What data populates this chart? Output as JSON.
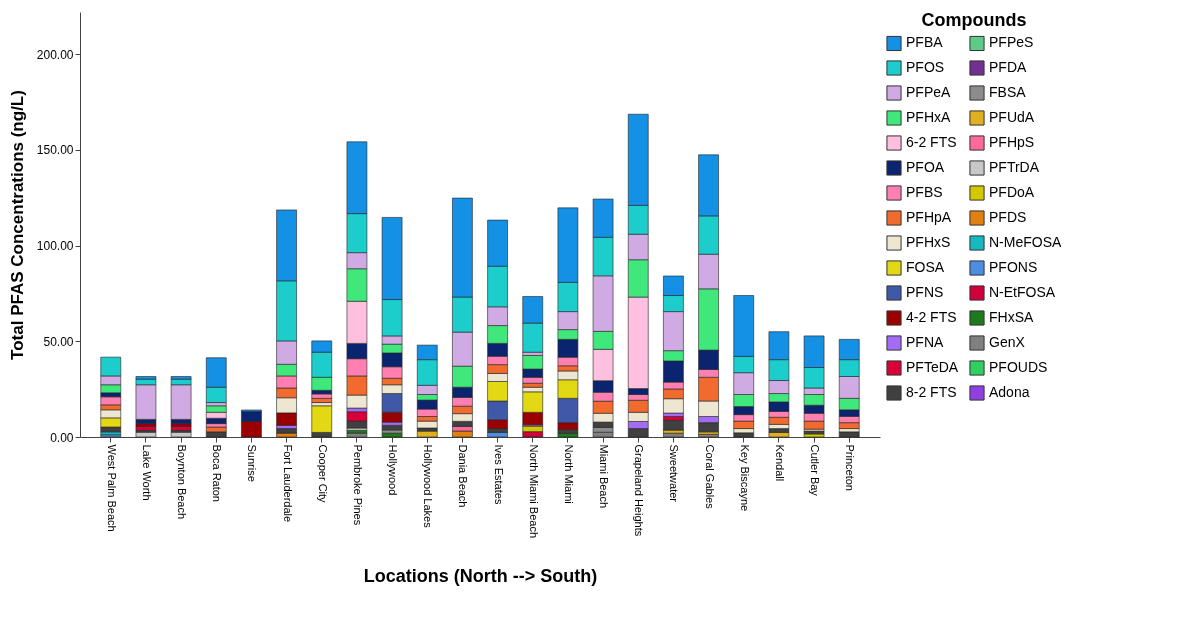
{
  "chart_data": {
    "type": "bar",
    "stacked": true,
    "xlabel": "Locations (North --> South)",
    "ylabel": "Total PFAS Concentrations (ng/L)",
    "legend_title": "Compounds",
    "legend": "right",
    "grid": false,
    "categories": [
      "West Palm Beach",
      "Lake Worth",
      "Boynton Beach",
      "Boca Raton",
      "Sunrise",
      "Fort Lauderdale",
      "Cooper City",
      "Pembroke Pines",
      "Hollywood",
      "Hollywood Lakes",
      "Dania Beach",
      "Ives Estates",
      "North Miami Beach",
      "North Miami",
      "Miami Beach",
      "Grapeland Heights",
      "Sweetwater",
      "Coral Gables",
      "Key Biscayne",
      "Kendall",
      "Cutler Bay",
      "Princeton"
    ],
    "ylim": [
      0,
      222
    ],
    "yticks": [
      {
        "value": 0,
        "label": "0.00"
      },
      {
        "value": 50,
        "label": "50.00"
      },
      {
        "value": 100,
        "label": "100.00"
      },
      {
        "value": 150,
        "label": "150.00"
      },
      {
        "value": 200,
        "label": "200.00"
      }
    ],
    "series": [
      {
        "name": "Adona",
        "color": "#9040e0",
        "values": [
          null,
          null,
          null,
          null,
          null,
          null,
          null,
          null,
          null,
          null,
          null,
          null,
          null,
          null,
          null,
          null,
          null,
          null,
          null,
          null,
          null,
          null
        ]
      },
      {
        "name": "PFOUDS",
        "color": "#30d060",
        "values": [
          null,
          null,
          null,
          null,
          null,
          null,
          null,
          null,
          null,
          null,
          null,
          null,
          null,
          null,
          null,
          null,
          null,
          null,
          null,
          null,
          null,
          null
        ]
      },
      {
        "name": "GenX",
        "color": "#808080",
        "values": [
          null,
          null,
          null,
          null,
          null,
          null,
          null,
          2.0,
          null,
          null,
          null,
          null,
          null,
          null,
          2.5,
          null,
          2.0,
          1.4,
          null,
          null,
          null,
          null
        ]
      },
      {
        "name": "FHxSA",
        "color": "#1d7a1d",
        "values": [
          null,
          null,
          null,
          null,
          null,
          null,
          null,
          1.5,
          2.0,
          null,
          null,
          null,
          null,
          1.9,
          null,
          null,
          null,
          null,
          null,
          null,
          null,
          null
        ]
      },
      {
        "name": "N-EtFOSA",
        "color": "#d0003a",
        "values": [
          null,
          null,
          null,
          null,
          null,
          null,
          null,
          null,
          null,
          null,
          null,
          null,
          2.8,
          null,
          null,
          null,
          null,
          null,
          null,
          null,
          null,
          null
        ]
      },
      {
        "name": "PFONS",
        "color": "#4c8ee0",
        "values": [
          1.2,
          null,
          null,
          null,
          null,
          null,
          null,
          null,
          null,
          null,
          null,
          2.4,
          null,
          null,
          null,
          null,
          null,
          null,
          null,
          null,
          null,
          null
        ]
      },
      {
        "name": "N-MeFOSA",
        "color": "#18b8c0",
        "values": [
          1.5,
          null,
          null,
          null,
          null,
          null,
          null,
          null,
          null,
          null,
          null,
          null,
          null,
          null,
          null,
          null,
          null,
          null,
          null,
          null,
          null,
          null
        ]
      },
      {
        "name": "PFDS",
        "color": "#e08010",
        "values": [
          null,
          null,
          null,
          null,
          null,
          2.0,
          null,
          null,
          null,
          null,
          3.1,
          null,
          null,
          null,
          null,
          null,
          null,
          null,
          null,
          null,
          null,
          null
        ]
      },
      {
        "name": "PFDoA",
        "color": "#d4c800",
        "values": [
          null,
          null,
          null,
          null,
          null,
          null,
          null,
          null,
          null,
          null,
          null,
          null,
          2.9,
          null,
          null,
          null,
          null,
          null,
          null,
          null,
          1.6,
          null
        ]
      },
      {
        "name": "PFTrDA",
        "color": "#c8c8c8",
        "values": [
          null,
          2.5,
          2.5,
          null,
          null,
          null,
          null,
          1.2,
          null,
          null,
          null,
          null,
          null,
          null,
          null,
          null,
          null,
          null,
          null,
          null,
          null,
          null
        ]
      },
      {
        "name": "PFHpS",
        "color": "#ff6a9e",
        "values": [
          null,
          null,
          null,
          null,
          null,
          null,
          null,
          null,
          null,
          null,
          2.4,
          null,
          null,
          null,
          null,
          null,
          null,
          null,
          null,
          null,
          null,
          null
        ]
      },
      {
        "name": "PFUdA",
        "color": "#e0b020",
        "values": [
          null,
          null,
          null,
          null,
          null,
          null,
          null,
          null,
          null,
          3.1,
          null,
          null,
          null,
          null,
          null,
          null,
          1.6,
          1.3,
          null,
          2.4,
          null,
          null
        ]
      },
      {
        "name": "FBSA",
        "color": "#8c8c8c",
        "values": [
          null,
          null,
          null,
          null,
          null,
          null,
          null,
          null,
          1.7,
          null,
          null,
          null,
          null,
          null,
          2.5,
          null,
          null,
          null,
          null,
          null,
          null,
          null
        ]
      },
      {
        "name": "PFDA",
        "color": "#733090",
        "values": [
          null,
          null,
          null,
          null,
          null,
          null,
          null,
          null,
          null,
          null,
          null,
          null,
          null,
          null,
          null,
          null,
          null,
          null,
          null,
          null,
          null,
          null
        ]
      },
      {
        "name": "PFPeS",
        "color": "#5ccb8a",
        "values": [
          null,
          null,
          null,
          null,
          null,
          null,
          null,
          null,
          null,
          null,
          null,
          null,
          null,
          null,
          null,
          null,
          null,
          null,
          null,
          null,
          null,
          null
        ]
      },
      {
        "name": "8-2 FTS",
        "color": "#404040",
        "values": [
          2.5,
          1.0,
          1.0,
          2.7,
          null,
          2.4,
          2.4,
          3.6,
          2.4,
          1.6,
          2.7,
          2.0,
          null,
          2.0,
          2.8,
          4.4,
          5.1,
          4.8,
          2.2,
          2.0,
          1.5,
          2.7
        ]
      },
      {
        "name": "PFTeDA",
        "color": "#d9003a",
        "values": [
          null,
          2.0,
          2.0,
          null,
          null,
          null,
          null,
          4.9,
          null,
          null,
          null,
          null,
          null,
          null,
          null,
          null,
          2.0,
          null,
          null,
          null,
          null,
          null
        ]
      },
      {
        "name": "PFNA",
        "color": "#a46cf5",
        "values": [
          null,
          null,
          null,
          null,
          null,
          1.7,
          null,
          1.9,
          1.7,
          null,
          null,
          null,
          0.7,
          null,
          null,
          3.7,
          1.8,
          3.2,
          null,
          null,
          null,
          null
        ]
      },
      {
        "name": "4-2 FTS",
        "color": "#9b0000",
        "values": [
          null,
          1.5,
          1.5,
          null,
          8.1,
          6.5,
          null,
          null,
          5.1,
          null,
          null,
          4.6,
          6.5,
          3.6,
          null,
          null,
          null,
          null,
          null,
          null,
          null,
          null
        ]
      },
      {
        "name": "PFNS",
        "color": "#3f59a8",
        "values": [
          null,
          null,
          null,
          null,
          null,
          null,
          null,
          null,
          9.8,
          null,
          null,
          9.8,
          null,
          12.7,
          null,
          null,
          null,
          null,
          null,
          null,
          null,
          null
        ]
      },
      {
        "name": "FOSA",
        "color": "#e3d814",
        "values": [
          4.8,
          null,
          null,
          null,
          null,
          null,
          13.9,
          null,
          null,
          null,
          null,
          10.2,
          10.7,
          9.7,
          null,
          null,
          null,
          null,
          null,
          null,
          null,
          null
        ]
      },
      {
        "name": "PFHxS",
        "color": "#ede6d0",
        "values": [
          4.2,
          null,
          null,
          null,
          null,
          7.9,
          1.7,
          6.8,
          4.6,
          3.6,
          4.0,
          4.2,
          2.4,
          4.6,
          4.6,
          4.8,
          7.5,
          8.1,
          2.2,
          2.2,
          1.0,
          1.7
        ]
      },
      {
        "name": "PFHpA",
        "color": "#f26b2e",
        "values": [
          2.6,
          null,
          null,
          2.5,
          null,
          5.1,
          2.2,
          10.0,
          3.4,
          2.4,
          3.9,
          4.6,
          2.1,
          2.7,
          6.3,
          6.3,
          5.1,
          12.4,
          3.9,
          3.7,
          4.2,
          3.1
        ]
      },
      {
        "name": "PFBS",
        "color": "#ff80b0",
        "values": [
          4.2,
          null,
          null,
          1.8,
          null,
          6.3,
          2.3,
          9.0,
          6.0,
          3.9,
          4.6,
          4.4,
          3.1,
          4.5,
          4.7,
          3.0,
          3.6,
          4.1,
          3.4,
          3.1,
          4.1,
          3.3
        ]
      },
      {
        "name": "PFOA",
        "color": "#0b2470",
        "values": [
          2.1,
          2.2,
          2.2,
          2.8,
          5.2,
          null,
          1.9,
          8.0,
          7.2,
          4.7,
          5.3,
          6.7,
          4.3,
          9.3,
          6.0,
          3.1,
          11.0,
          10.1,
          4.2,
          4.9,
          4.2,
          3.4
        ]
      },
      {
        "name": "6-2 FTS",
        "color": "#ffc0e0",
        "values": [
          null,
          null,
          null,
          3.1,
          null,
          null,
          null,
          22.0,
          null,
          null,
          null,
          null,
          null,
          null,
          16.4,
          47.8,
          null,
          null,
          null,
          null,
          null,
          null
        ]
      },
      {
        "name": "PFHxA",
        "color": "#40e87c",
        "values": [
          4.2,
          null,
          null,
          3.4,
          null,
          6.1,
          6.8,
          17.0,
          4.6,
          2.9,
          11.0,
          9.3,
          7.1,
          5.1,
          9.4,
          19.5,
          5.4,
          32.0,
          6.3,
          4.4,
          5.6,
          6.0
        ]
      },
      {
        "name": "PFPeA",
        "color": "#d0abe3",
        "values": [
          4.6,
          18.1,
          18.1,
          1.7,
          null,
          12.2,
          null,
          8.4,
          4.3,
          4.8,
          17.8,
          9.8,
          1.7,
          9.4,
          29.0,
          13.3,
          20.4,
          18.1,
          11.4,
          6.8,
          3.4,
          11.4
        ]
      },
      {
        "name": "PFOS",
        "color": "#1ccdcc",
        "values": [
          9.8,
          2.9,
          2.9,
          8.0,
          null,
          31.4,
          13.1,
          20.4,
          19.0,
          13.4,
          18.3,
          21.2,
          15.2,
          15.3,
          20.1,
          15.1,
          8.4,
          20.0,
          8.5,
          10.9,
          10.7,
          8.8
        ]
      },
      {
        "name": "PFBA",
        "color": "#1490e4",
        "values": [
          null,
          1.4,
          1.4,
          15.4,
          0.8,
          37.0,
          5.9,
          37.5,
          42.9,
          7.6,
          51.7,
          24.1,
          13.9,
          38.9,
          20.0,
          47.6,
          10.2,
          31.9,
          31.8,
          14.6,
          16.5,
          10.6
        ]
      }
    ]
  }
}
